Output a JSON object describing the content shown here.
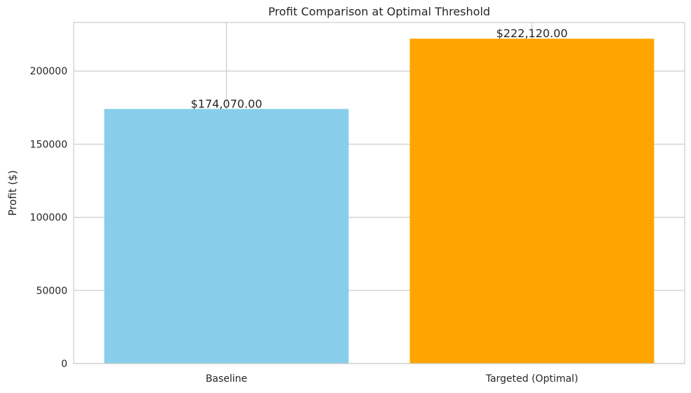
{
  "chart_data": {
    "type": "bar",
    "title": "Profit Comparison at Optimal Threshold",
    "xlabel": "",
    "ylabel": "Profit ($)",
    "categories": [
      "Baseline",
      "Targeted (Optimal)"
    ],
    "values": [
      174070,
      222120
    ],
    "value_labels": [
      "$174,070.00",
      "$222,120.00"
    ],
    "colors": [
      "#87ceeb",
      "#ffa500"
    ],
    "ylim": [
      0,
      233226
    ],
    "yticks": [
      0,
      50000,
      100000,
      150000,
      200000
    ],
    "ytick_labels": [
      "0",
      "50000",
      "100000",
      "150000",
      "200000"
    ],
    "grid": true,
    "legend": "none"
  }
}
